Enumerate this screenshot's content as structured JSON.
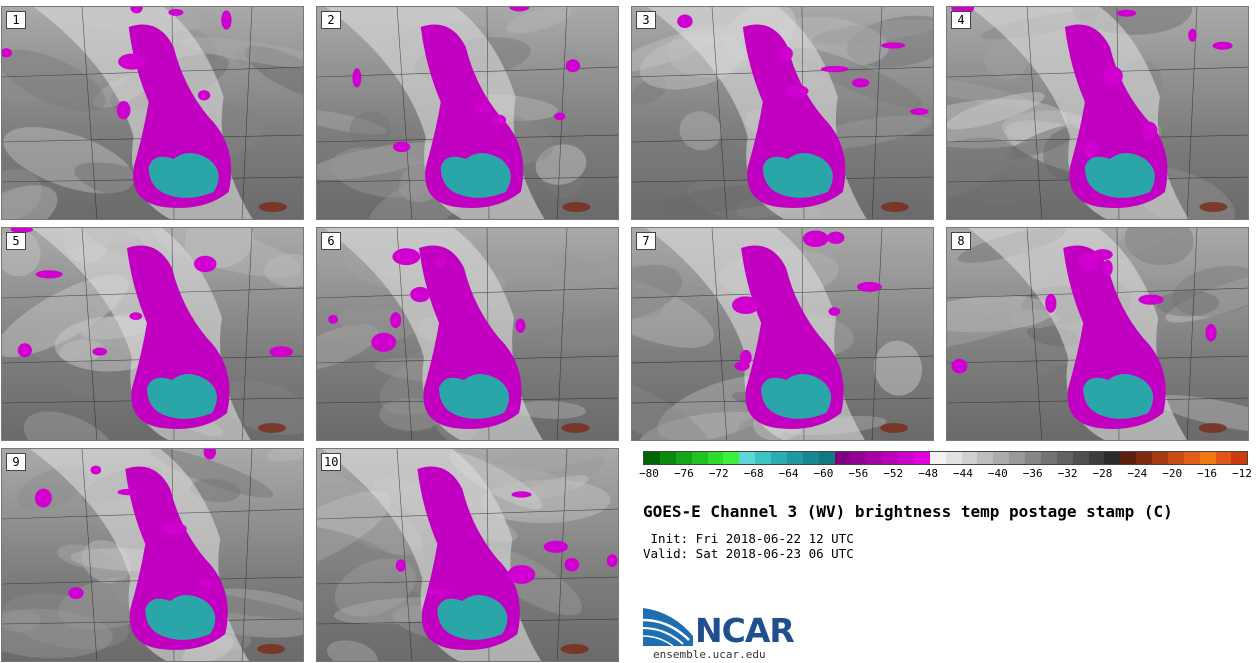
{
  "panels": [
    {
      "num": "1"
    },
    {
      "num": "2"
    },
    {
      "num": "3"
    },
    {
      "num": "4"
    },
    {
      "num": "5"
    },
    {
      "num": "6"
    },
    {
      "num": "7"
    },
    {
      "num": "8"
    },
    {
      "num": "9"
    },
    {
      "num": "10"
    }
  ],
  "colorbar": {
    "colors": [
      "#006400",
      "#0a8a0a",
      "#16a516",
      "#22c022",
      "#2edc2e",
      "#3cf03c",
      "#5fd6d6",
      "#3ec3c3",
      "#2aaeb0",
      "#1f9aa0",
      "#178890",
      "#107a82",
      "#800080",
      "#930093",
      "#a600a6",
      "#ba00ba",
      "#cd00cd",
      "#e000e0",
      "#f2f2f2",
      "#e2e2e2",
      "#d0d0d0",
      "#bdbdbd",
      "#ababab",
      "#999999",
      "#878787",
      "#747474",
      "#626262",
      "#4f4f4f",
      "#3d3d3d",
      "#2b2b2b",
      "#5e1e0e",
      "#7e2a10",
      "#a33a12",
      "#c84c14",
      "#e25e16",
      "#f07a10",
      "#e2551a",
      "#cc3a0e"
    ],
    "ticks": [
      "−80",
      "−76",
      "−72",
      "−68",
      "−64",
      "−60",
      "−56",
      "−52",
      "−48",
      "−44",
      "−40",
      "−36",
      "−32",
      "−28",
      "−24",
      "−20",
      "−16",
      "−12"
    ]
  },
  "title": "GOES-E Channel 3 (WV) brightness temp postage stamp (C)",
  "init_line": " Init: Fri 2018-06-22 12 UTC",
  "valid_line": "Valid: Sat 2018-06-23 06 UTC",
  "logo": {
    "text": "NCAR",
    "url": "ensemble.ucar.edu"
  }
}
